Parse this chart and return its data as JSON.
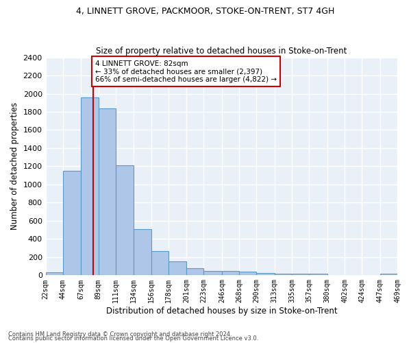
{
  "title": "4, LINNETT GROVE, PACKMOOR, STOKE-ON-TRENT, ST7 4GH",
  "subtitle": "Size of property relative to detached houses in Stoke-on-Trent",
  "xlabel": "Distribution of detached houses by size in Stoke-on-Trent",
  "ylabel": "Number of detached properties",
  "bar_edges": [
    22,
    44,
    67,
    89,
    111,
    134,
    156,
    178,
    201,
    223,
    246,
    268,
    290,
    313,
    335,
    357,
    380,
    402,
    424,
    447,
    469
  ],
  "bar_heights": [
    30,
    1150,
    1960,
    1840,
    1210,
    510,
    265,
    155,
    80,
    50,
    45,
    40,
    25,
    20,
    15,
    18,
    0,
    0,
    0,
    20
  ],
  "bar_color": "#aec6e8",
  "bar_edge_color": "#5a9ac9",
  "vline_x": 82,
  "vline_color": "#cc0000",
  "annotation_text": "4 LINNETT GROVE: 82sqm\n← 33% of detached houses are smaller (2,397)\n66% of semi-detached houses are larger (4,822) →",
  "annotation_box_color": "#ffffff",
  "annotation_box_edge": "#cc0000",
  "ylim": [
    0,
    2400
  ],
  "yticks": [
    0,
    200,
    400,
    600,
    800,
    1000,
    1200,
    1400,
    1600,
    1800,
    2000,
    2200,
    2400
  ],
  "bg_color": "#eaf0f8",
  "grid_color": "#ffffff",
  "title_fontsize": 9,
  "subtitle_fontsize": 8.5,
  "footnote1": "Contains HM Land Registry data © Crown copyright and database right 2024.",
  "footnote2": "Contains public sector information licensed under the Open Government Licence v3.0."
}
